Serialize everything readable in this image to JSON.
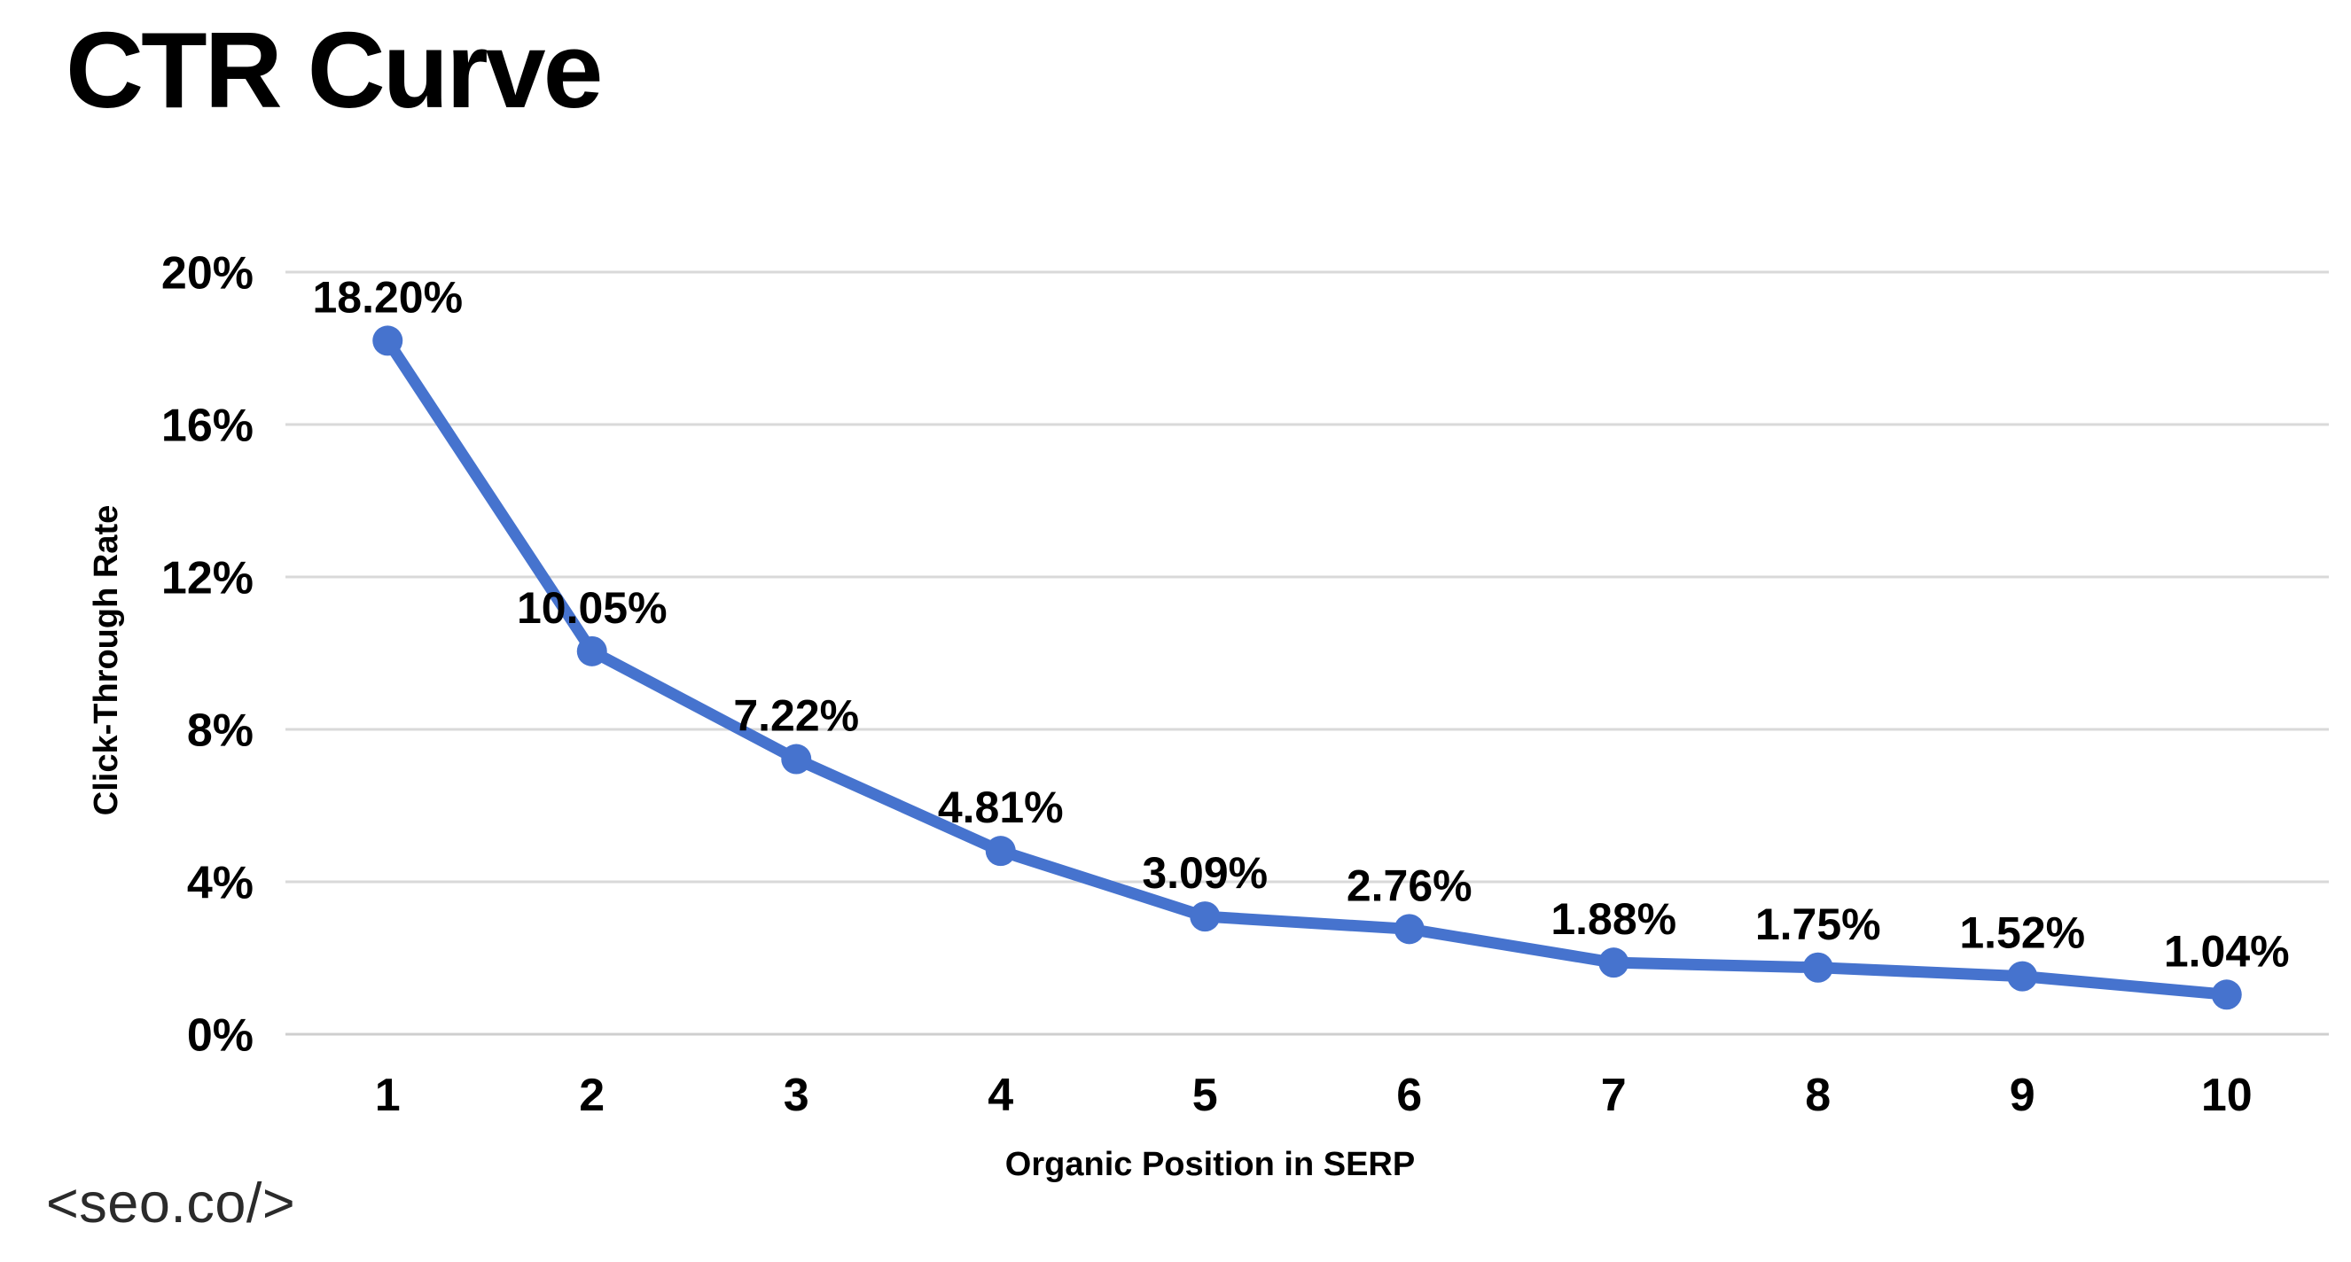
{
  "page": {
    "background": "#ffffff",
    "footer_logo": "<seo.co/>"
  },
  "chart_data": {
    "type": "line",
    "title": "CTR Curve",
    "xlabel": "Organic Position in SERP",
    "ylabel": "Click-Through Rate",
    "categories": [
      "1",
      "2",
      "3",
      "4",
      "5",
      "6",
      "7",
      "8",
      "9",
      "10"
    ],
    "values": [
      18.2,
      10.05,
      7.22,
      4.81,
      3.09,
      2.76,
      1.88,
      1.75,
      1.52,
      1.04
    ],
    "point_labels": [
      "18.20%",
      "10.05%",
      "7.22%",
      "4.81%",
      "3.09%",
      "2.76%",
      "1.88%",
      "1.75%",
      "1.52%",
      "1.04%"
    ],
    "y_tick_labels": [
      "0%",
      "4%",
      "8%",
      "12%",
      "16%",
      "20%"
    ],
    "y_tick_values": [
      0,
      4,
      8,
      12,
      16,
      20
    ],
    "ylim": [
      0,
      20
    ],
    "grid": true,
    "legend_position": "none",
    "colors": {
      "series": "#4673CE",
      "gridline": "#d9d9d9",
      "axis_line": "#cfcfcf",
      "label": "#000000",
      "footer": "#2b2b2b"
    }
  }
}
